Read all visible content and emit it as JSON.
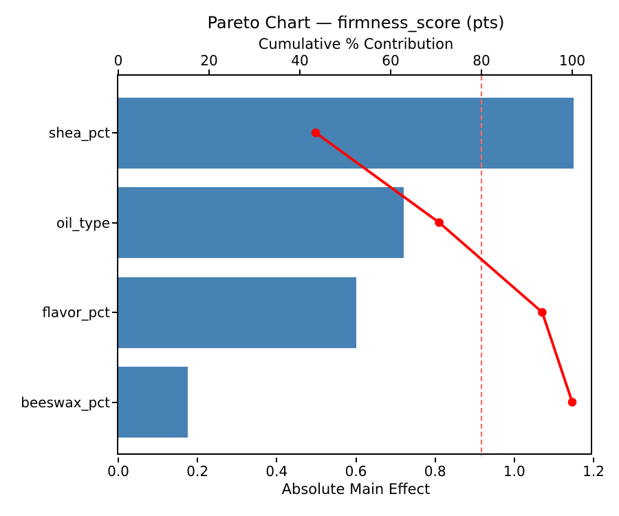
{
  "title": "Pareto Chart — firmness_score (pts)",
  "chart_data": {
    "type": "bar",
    "subtype": "pareto-horizontal",
    "title": "Pareto Chart — firmness_score (pts)",
    "categories": [
      "shea_pct",
      "oil_type",
      "flavor_pct",
      "beeswax_pct"
    ],
    "series": [
      {
        "name": "Absolute Main Effect",
        "kind": "bar",
        "orientation": "horizontal",
        "values": [
          1.15,
          0.72,
          0.6,
          0.175
        ],
        "color": "#4682b4"
      },
      {
        "name": "Cumulative % Contribution",
        "kind": "line",
        "values": [
          43.5,
          70.7,
          93.4,
          100.0
        ],
        "color": "#ff0000",
        "marker": "circle"
      }
    ],
    "threshold_line": {
      "value": 80,
      "axis": "top",
      "orientation": "vertical",
      "style": "dashed",
      "color": "#ff6666"
    },
    "axes": {
      "bottom": {
        "label": "Absolute Main Effect",
        "ticks": [
          0.0,
          0.2,
          0.4,
          0.6,
          0.8,
          1.0,
          1.2
        ],
        "tick_labels": [
          "0.0",
          "0.2",
          "0.4",
          "0.6",
          "0.8",
          "1.0",
          "1.2"
        ],
        "range": [
          0,
          1.2
        ]
      },
      "top": {
        "label": "Cumulative % Contribution",
        "ticks": [
          0,
          20,
          40,
          60,
          80,
          100
        ],
        "tick_labels": [
          "0",
          "20",
          "40",
          "60",
          "80",
          "100"
        ],
        "range": [
          0,
          104.7
        ]
      },
      "left": {
        "tick_labels": [
          "shea_pct",
          "oil_type",
          "flavor_pct",
          "beeswax_pct"
        ]
      }
    },
    "grid": false,
    "legend": "none",
    "colors": {
      "bar": "#4682b4",
      "line": "#ff0000",
      "threshold": "#ff6666",
      "spine": "#000000",
      "background": "#ffffff"
    }
  }
}
